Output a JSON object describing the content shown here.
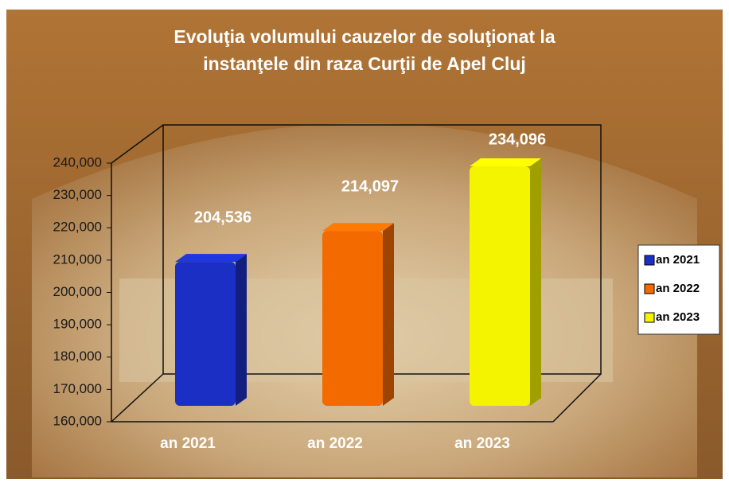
{
  "chart_data": {
    "type": "bar3d",
    "title": [
      "Evoluţia volumului cauzelor de soluţionat la",
      "instanţele din raza Curţii de Apel Cluj"
    ],
    "categories": [
      "an 2021",
      "an 2022",
      "an 2023"
    ],
    "values": [
      204536,
      214097,
      234096
    ],
    "value_labels": [
      "204,536",
      "214,097",
      "234,096"
    ],
    "colors": [
      "#1b2fc4",
      "#f26a00",
      "#f4f400"
    ],
    "ylim": [
      160000,
      240000
    ],
    "yticks": [
      {
        "value": 160000,
        "label": "160,000"
      },
      {
        "value": 170000,
        "label": "170,000"
      },
      {
        "value": 180000,
        "label": "180,000"
      },
      {
        "value": 190000,
        "label": "190,000"
      },
      {
        "value": 200000,
        "label": "200,000"
      },
      {
        "value": 210000,
        "label": "210,000"
      },
      {
        "value": 220000,
        "label": "220,000"
      },
      {
        "value": 230000,
        "label": "230,000"
      },
      {
        "value": 240000,
        "label": "240,000"
      }
    ],
    "legend": "right"
  }
}
